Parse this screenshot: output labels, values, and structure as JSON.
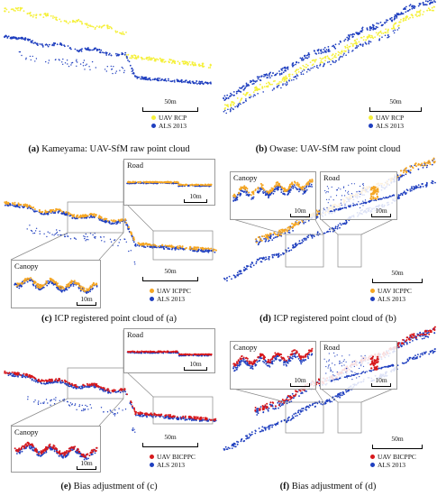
{
  "colors": {
    "uav_raw": "#f5f03a",
    "uav_icp": "#f5a623",
    "uav_bias": "#d7191c",
    "als": "#1f3fbf"
  },
  "panels": [
    {
      "id": "a",
      "letter": "(a)",
      "caption": "Kameyama: UAV-SfM raw point cloud",
      "legend": [
        "UAV RCP",
        "ALS 2013"
      ],
      "scale": "50m",
      "insets": []
    },
    {
      "id": "b",
      "letter": "(b)",
      "caption": "Owase: UAV-SfM raw point cloud",
      "legend": [
        "UAV RCP",
        "ALS 2013"
      ],
      "scale": "50m",
      "insets": []
    },
    {
      "id": "c",
      "letter": "(c)",
      "caption": "ICP registered point cloud of (a)",
      "legend": [
        "UAV ICPPC",
        "ALS 2013"
      ],
      "scale": "50m",
      "insets": [
        {
          "title": "Road",
          "scale": "10m"
        },
        {
          "title": "Canopy",
          "scale": "10m"
        }
      ]
    },
    {
      "id": "d",
      "letter": "(d)",
      "caption": "ICP registered point cloud of (b)",
      "legend": [
        "UAV ICPPC",
        "ALS 2013"
      ],
      "scale": "50m",
      "insets": [
        {
          "title": "Canopy",
          "scale": "10m"
        },
        {
          "title": "Road",
          "scale": "10m"
        }
      ]
    },
    {
      "id": "e",
      "letter": "(e)",
      "caption": "Bias adjustment of (c)",
      "legend": [
        "UAV BICPPC",
        "ALS 2013"
      ],
      "scale": "50m",
      "insets": [
        {
          "title": "Road",
          "scale": "10m"
        },
        {
          "title": "Canopy",
          "scale": "10m"
        }
      ]
    },
    {
      "id": "f",
      "letter": "(f)",
      "caption": "Bias adjustment of (d)",
      "legend": [
        "UAV BICPPC",
        "ALS 2013"
      ],
      "scale": "50m",
      "insets": [
        {
          "title": "Canopy",
          "scale": "10m"
        },
        {
          "title": "Road",
          "scale": "10m"
        }
      ]
    }
  ]
}
